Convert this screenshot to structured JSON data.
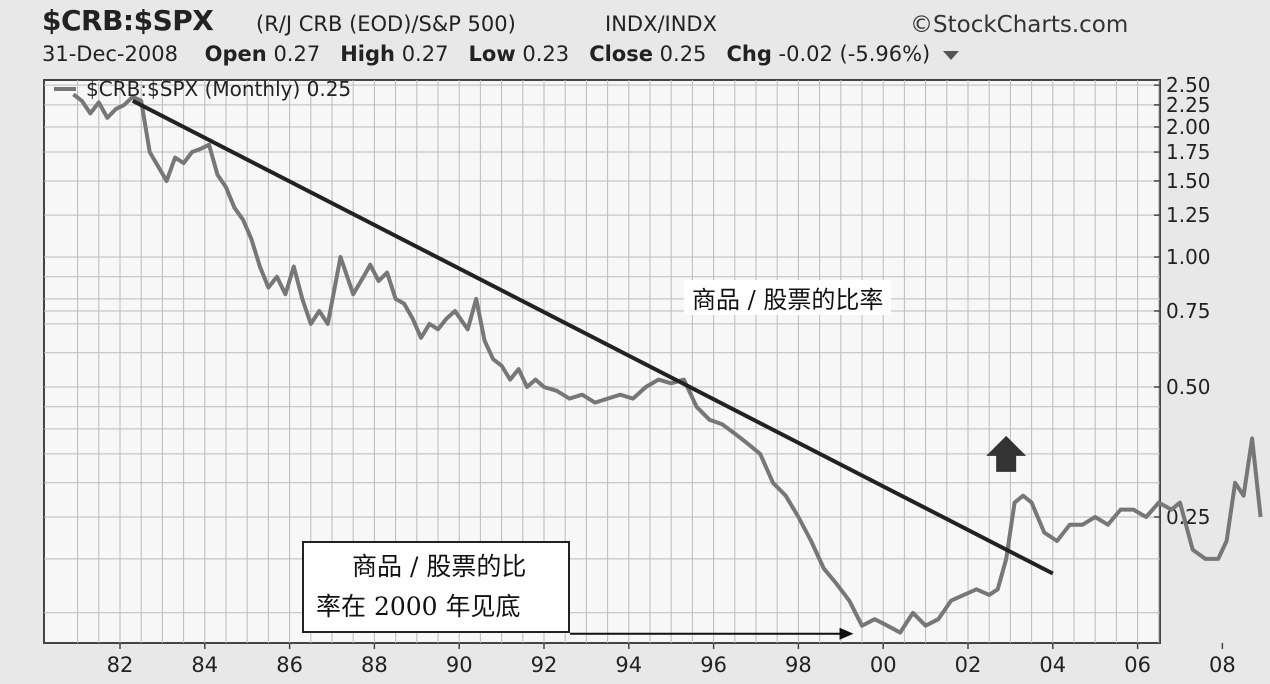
{
  "header": {
    "symbol": "$CRB:$SPX",
    "description": "(R/J CRB (EOD)/S&P 500)",
    "index_type": "INDX/INDX",
    "brand": "©StockCharts.com",
    "date": "31-Dec-2008",
    "open_label": "Open",
    "open_value": "0.27",
    "high_label": "High",
    "high_value": "0.27",
    "low_label": "Low",
    "low_value": "0.23",
    "close_label": "Close",
    "close_value": "0.25",
    "chg_label": "Chg",
    "chg_value": "-0.02 (-5.96%)"
  },
  "annotations": {
    "ratio_label": "商品 / 股票的比率",
    "callout_line1": "商品 / 股票的比",
    "callout_line2": "率在 2000 年见底"
  },
  "chart_data": {
    "type": "line",
    "legend": "$CRB:$SPX (Monthly) 0.25",
    "legend_placement": "top-left",
    "y_scale": "log",
    "yticks": [
      0.25,
      0.5,
      0.75,
      1.0,
      1.25,
      1.5,
      1.75,
      2.0,
      2.25,
      2.5
    ],
    "ytick_labels": [
      "0.25",
      "0.50",
      "0.75",
      "1.00",
      "1.25",
      "1.50",
      "1.75",
      "2.00",
      "2.25",
      "2.50"
    ],
    "xticks": [
      1982,
      1984,
      1986,
      1988,
      1990,
      1992,
      1994,
      1996,
      1998,
      2000,
      2002,
      2004,
      2006,
      2008
    ],
    "xtick_labels": [
      "82",
      "84",
      "86",
      "88",
      "90",
      "92",
      "94",
      "96",
      "98",
      "00",
      "02",
      "04",
      "06",
      "08"
    ],
    "xlim": [
      1980.8,
      2009.5
    ],
    "grid": true,
    "colors": {
      "series": "#777777",
      "trendline": "#222222",
      "grid": "#bbbbbb",
      "arrow": "#333333"
    },
    "series": [
      {
        "x": [
          1980.9,
          1981.1,
          1981.3,
          1981.5,
          1981.7,
          1981.9,
          1982.1,
          1982.3,
          1982.5,
          1982.7,
          1982.9,
          1983.1,
          1983.3,
          1983.5,
          1983.7,
          1983.9,
          1984.1,
          1984.3,
          1984.5,
          1984.7,
          1984.9,
          1985.1,
          1985.3,
          1985.5,
          1985.7,
          1985.9,
          1986.1,
          1986.3,
          1986.5,
          1986.7,
          1986.9,
          1987.2,
          1987.5,
          1987.8,
          1987.9,
          1988.1,
          1988.3,
          1988.5,
          1988.7,
          1988.9,
          1989.1,
          1989.3,
          1989.5,
          1989.7,
          1989.9,
          1990.2,
          1990.4,
          1990.6,
          1990.8,
          1991.0,
          1991.2,
          1991.4,
          1991.6,
          1991.8,
          1992.0,
          1992.3,
          1992.6,
          1992.9,
          1993.2,
          1993.5,
          1993.8,
          1994.1,
          1994.4,
          1994.7,
          1995.0,
          1995.3,
          1995.6,
          1995.9,
          1996.2,
          1996.5,
          1996.8,
          1997.1,
          1997.4,
          1997.7,
          1998.0,
          1998.3,
          1998.6,
          1998.9,
          1999.2,
          1999.5,
          1999.8,
          2000.1,
          2000.4,
          2000.7,
          2001.0,
          2001.3,
          2001.6,
          2001.9,
          2002.2,
          2002.5,
          2002.7,
          2002.9,
          2003.1,
          2003.3,
          2003.5,
          2003.8,
          2004.1,
          2004.4,
          2004.7,
          2005.0,
          2005.3,
          2005.6,
          2005.9,
          2006.2,
          2006.5,
          2006.8,
          2007.0,
          2007.3,
          2007.6,
          2007.9,
          2008.1,
          2008.3,
          2008.5,
          2008.7,
          2008.9
        ],
        "values": [
          2.38,
          2.3,
          2.15,
          2.28,
          2.1,
          2.2,
          2.25,
          2.35,
          2.3,
          1.75,
          1.62,
          1.5,
          1.7,
          1.65,
          1.75,
          1.78,
          1.82,
          1.55,
          1.45,
          1.3,
          1.22,
          1.1,
          0.95,
          0.85,
          0.9,
          0.82,
          0.95,
          0.8,
          0.7,
          0.75,
          0.7,
          1.0,
          0.82,
          0.92,
          0.96,
          0.88,
          0.92,
          0.8,
          0.78,
          0.72,
          0.65,
          0.7,
          0.68,
          0.72,
          0.75,
          0.68,
          0.8,
          0.64,
          0.58,
          0.56,
          0.52,
          0.55,
          0.5,
          0.52,
          0.5,
          0.49,
          0.47,
          0.48,
          0.46,
          0.47,
          0.48,
          0.47,
          0.5,
          0.52,
          0.51,
          0.52,
          0.45,
          0.42,
          0.41,
          0.39,
          0.37,
          0.35,
          0.3,
          0.28,
          0.25,
          0.22,
          0.19,
          0.175,
          0.16,
          0.14,
          0.145,
          0.14,
          0.135,
          0.15,
          0.14,
          0.145,
          0.16,
          0.165,
          0.17,
          0.165,
          0.17,
          0.2,
          0.27,
          0.28,
          0.27,
          0.23,
          0.22,
          0.24,
          0.24,
          0.25,
          0.24,
          0.26,
          0.26,
          0.25,
          0.27,
          0.26,
          0.27,
          0.21,
          0.2,
          0.2,
          0.22,
          0.3,
          0.28,
          0.38,
          0.25
        ]
      }
    ],
    "trendline": {
      "x": [
        1982.3,
        2004.0
      ],
      "y": [
        2.3,
        0.185
      ]
    },
    "arrow": {
      "x": 2002.9,
      "y": 0.35,
      "direction": "up"
    },
    "callout_target": {
      "x": 1999.3,
      "y": 0.14
    }
  }
}
